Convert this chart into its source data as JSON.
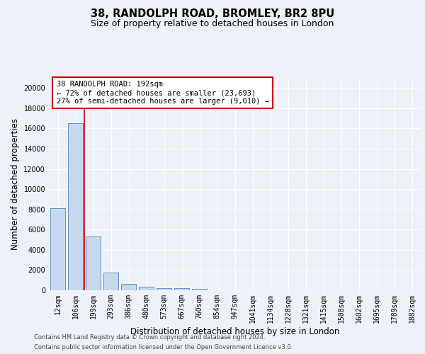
{
  "title": "38, RANDOLPH ROAD, BROMLEY, BR2 8PU",
  "subtitle": "Size of property relative to detached houses in London",
  "xlabel": "Distribution of detached houses by size in London",
  "ylabel": "Number of detached properties",
  "footer_line1": "Contains HM Land Registry data © Crown copyright and database right 2024.",
  "footer_line2": "Contains public sector information licensed under the Open Government Licence v3.0.",
  "bar_labels": [
    "12sqm",
    "106sqm",
    "199sqm",
    "293sqm",
    "386sqm",
    "480sqm",
    "573sqm",
    "667sqm",
    "760sqm",
    "854sqm",
    "947sqm",
    "1041sqm",
    "1134sqm",
    "1228sqm",
    "1321sqm",
    "1415sqm",
    "1508sqm",
    "1602sqm",
    "1695sqm",
    "1789sqm",
    "1882sqm"
  ],
  "bar_values": [
    8100,
    16500,
    5300,
    1750,
    650,
    320,
    220,
    190,
    160,
    0,
    0,
    0,
    0,
    0,
    0,
    0,
    0,
    0,
    0,
    0,
    0
  ],
  "bar_color": "#c5d8ed",
  "bar_edge_color": "#5585c5",
  "highlight_bar_index": 1,
  "highlight_line_color": "#cc0000",
  "annotation_text": "38 RANDOLPH ROAD: 192sqm\n← 72% of detached houses are smaller (23,693)\n27% of semi-detached houses are larger (9,010) →",
  "annotation_box_color": "#ffffff",
  "annotation_box_edge": "#cc0000",
  "bg_color": "#eef2f8",
  "ylim": [
    0,
    21000
  ],
  "yticks": [
    0,
    2000,
    4000,
    6000,
    8000,
    10000,
    12000,
    14000,
    16000,
    18000,
    20000
  ],
  "grid_color": "#ffffff",
  "title_fontsize": 10.5,
  "subtitle_fontsize": 9,
  "axis_label_fontsize": 8.5,
  "tick_fontsize": 7,
  "footer_fontsize": 6
}
